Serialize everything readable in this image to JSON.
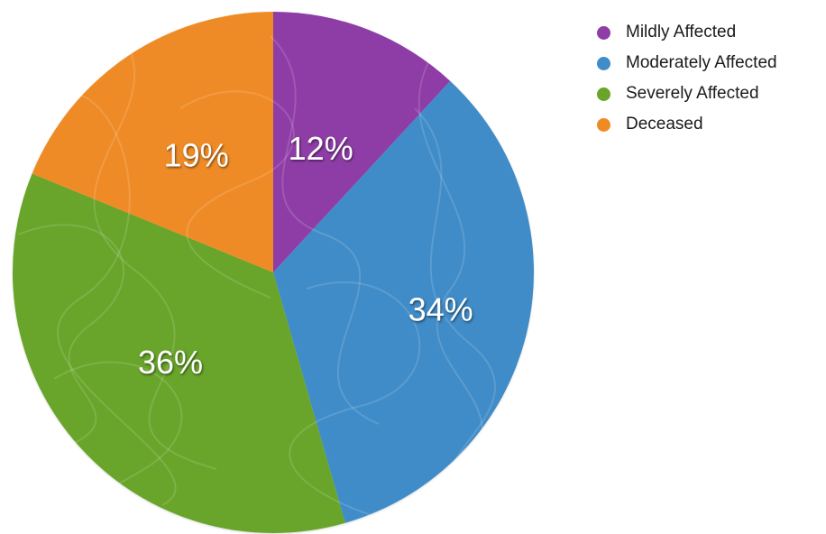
{
  "chart_data": {
    "type": "pie",
    "slices": [
      {
        "label": "Mildly Affected",
        "value": 12,
        "display": "12%",
        "color": "#8e3ea6"
      },
      {
        "label": "Moderately Affected",
        "value": 34,
        "display": "34%",
        "color": "#408cc8"
      },
      {
        "label": "Severely Affected",
        "value": 36,
        "display": "36%",
        "color": "#68a52a"
      },
      {
        "label": "Deceased",
        "value": 19,
        "display": "19%",
        "color": "#ef8b25"
      }
    ],
    "legend_position": "top-right",
    "start_angle": "12 o'clock",
    "direction": "clockwise"
  }
}
